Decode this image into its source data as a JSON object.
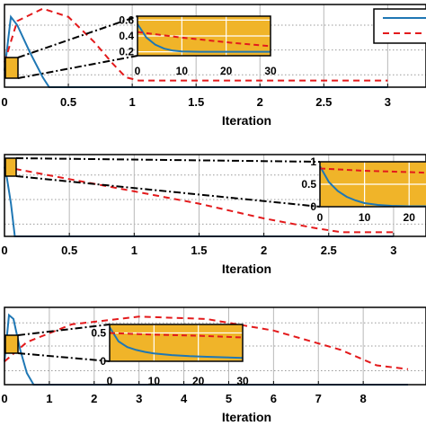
{
  "chart_data": [
    {
      "type": "line",
      "xlabel": "Iteration",
      "xlim": [
        0,
        3
      ],
      "x_ticks": [
        "0",
        "0.5",
        "1",
        "1.5",
        "2",
        "2.5",
        "3"
      ],
      "grid": true,
      "legend": "top-right",
      "colors": {
        "blue": "#1f77b4",
        "red": "#e31a1c",
        "inset": "#f0b429"
      },
      "series": [
        {
          "color": "blue",
          "style": "solid",
          "x": [
            0,
            0.05,
            0.1,
            0.2,
            0.3,
            0.35,
            3
          ],
          "y": [
            0.2,
            0.85,
            0.75,
            0.42,
            0.12,
            0.0,
            0.0
          ]
        },
        {
          "color": "red",
          "style": "dashed",
          "x": [
            0,
            0.1,
            0.3,
            0.5,
            0.7,
            0.85,
            0.95,
            1.05,
            3
          ],
          "y": [
            0.3,
            0.8,
            0.95,
            0.85,
            0.55,
            0.28,
            0.12,
            0.08,
            0.08
          ]
        }
      ],
      "inset": {
        "xlim": [
          0,
          30
        ],
        "x_ticks": [
          "0",
          "10",
          "20",
          "30"
        ],
        "y_ticks": [
          "0.2",
          "0.4",
          "0.6"
        ],
        "ylim": [
          0.15,
          0.65
        ],
        "series": [
          {
            "color": "blue",
            "style": "solid",
            "x": [
              0,
              2,
              4,
              6,
              8,
              10,
              14,
              18,
              22,
              26,
              30
            ],
            "y": [
              0.55,
              0.38,
              0.29,
              0.24,
              0.215,
              0.205,
              0.2,
              0.2,
              0.2,
              0.2,
              0.2
            ]
          },
          {
            "color": "red",
            "style": "dashed",
            "x": [
              0,
              10,
              20,
              30
            ],
            "y": [
              0.45,
              0.38,
              0.32,
              0.27
            ]
          }
        ]
      }
    },
    {
      "type": "line",
      "xlabel": "Iteration",
      "xlim": [
        0,
        3
      ],
      "x_ticks": [
        "0",
        "0.5",
        "1",
        "1.5",
        "2",
        "2.5",
        "3"
      ],
      "grid": true,
      "series": [
        {
          "color": "blue",
          "style": "solid",
          "x": [
            0,
            0.02,
            0.05,
            0.08,
            3
          ],
          "y": [
            0.85,
            0.7,
            0.4,
            0.0,
            0.0
          ]
        },
        {
          "color": "red",
          "style": "dashed",
          "x": [
            0,
            0.5,
            1.0,
            1.5,
            2.0,
            2.4,
            2.6,
            3
          ],
          "y": [
            0.85,
            0.7,
            0.55,
            0.4,
            0.22,
            0.1,
            0.05,
            0.05
          ]
        }
      ],
      "inset": {
        "xlim": [
          0,
          25
        ],
        "x_ticks": [
          "0",
          "10",
          "20"
        ],
        "y_ticks": [
          "0",
          "0.5",
          "1"
        ],
        "ylim": [
          0,
          1
        ],
        "series": [
          {
            "color": "blue",
            "style": "solid",
            "x": [
              0,
              2,
              4,
              6,
              8,
              10,
              13,
              16,
              20,
              25
            ],
            "y": [
              0.9,
              0.55,
              0.35,
              0.22,
              0.14,
              0.08,
              0.04,
              0.02,
              0.01,
              0.01
            ]
          },
          {
            "color": "red",
            "style": "dashed",
            "x": [
              0,
              10,
              20,
              25
            ],
            "y": [
              0.85,
              0.8,
              0.77,
              0.75
            ]
          }
        ]
      }
    },
    {
      "type": "line",
      "xlabel": "Iteration",
      "xlim": [
        0,
        9
      ],
      "x_ticks": [
        "0",
        "1",
        "2",
        "3",
        "4",
        "5",
        "6",
        "7",
        "8"
      ],
      "grid": true,
      "series": [
        {
          "color": "blue",
          "style": "solid",
          "x": [
            0,
            0.1,
            0.2,
            0.35,
            0.5,
            0.65,
            9
          ],
          "y": [
            0.3,
            0.9,
            0.85,
            0.45,
            0.15,
            0.0,
            0.0
          ]
        },
        {
          "color": "red",
          "style": "dashed",
          "x": [
            0,
            0.5,
            1.5,
            3,
            4.5,
            6,
            7.5,
            8.3,
            9
          ],
          "y": [
            0.3,
            0.55,
            0.78,
            0.88,
            0.85,
            0.7,
            0.45,
            0.25,
            0.2
          ]
        }
      ],
      "inset": {
        "xlim": [
          0,
          30
        ],
        "x_ticks": [
          "0",
          "10",
          "20",
          "30"
        ],
        "y_ticks": [
          "0",
          "0.5"
        ],
        "ylim": [
          0,
          0.65
        ],
        "series": [
          {
            "color": "blue",
            "style": "solid",
            "x": [
              0,
              2,
              4,
              6,
              8,
              10,
              14,
              18,
              22,
              26,
              30
            ],
            "y": [
              0.6,
              0.35,
              0.25,
              0.2,
              0.165,
              0.14,
              0.11,
              0.09,
              0.08,
              0.07,
              0.06
            ]
          },
          {
            "color": "red",
            "style": "dashed",
            "x": [
              0,
              10,
              20,
              30
            ],
            "y": [
              0.5,
              0.47,
              0.45,
              0.42
            ]
          }
        ]
      }
    }
  ]
}
